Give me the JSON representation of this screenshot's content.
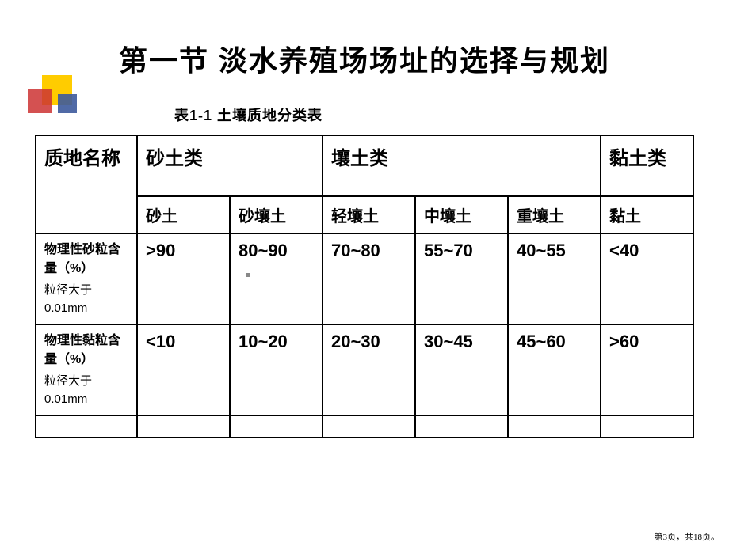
{
  "title": "第一节  淡水养殖场场址的选择与规划",
  "caption": "表1-1    土壤质地分类表",
  "table": {
    "corner_label": "质地名称",
    "categories": [
      {
        "label": "砂土类",
        "span": 2
      },
      {
        "label": "壤土类",
        "span": 3
      },
      {
        "label": "黏土类",
        "span": 1
      }
    ],
    "sub_headers": [
      "砂土",
      "砂壤土",
      "轻壤土",
      "中壤土",
      "重壤土",
      "黏土"
    ],
    "rows": [
      {
        "label_main": "物理性砂粒含量（%）",
        "label_sub": "粒径大于0.01mm",
        "values": [
          ">90",
          "80~90",
          "70~80",
          "55~70",
          "40~55",
          "<40"
        ]
      },
      {
        "label_main": "物理性黏粒含量（%）",
        "label_sub": "粒径大于0.01mm",
        "values": [
          "<10",
          "10~20",
          "20~30",
          "30~45",
          "45~60",
          ">60"
        ]
      }
    ]
  },
  "footer": "第3页，共18页。",
  "colors": {
    "text": "#000000",
    "background": "#ffffff",
    "deco_yellow": "#ffcc00",
    "deco_red": "#cc3333",
    "deco_blue": "#3d5a9c",
    "border": "#000000"
  }
}
